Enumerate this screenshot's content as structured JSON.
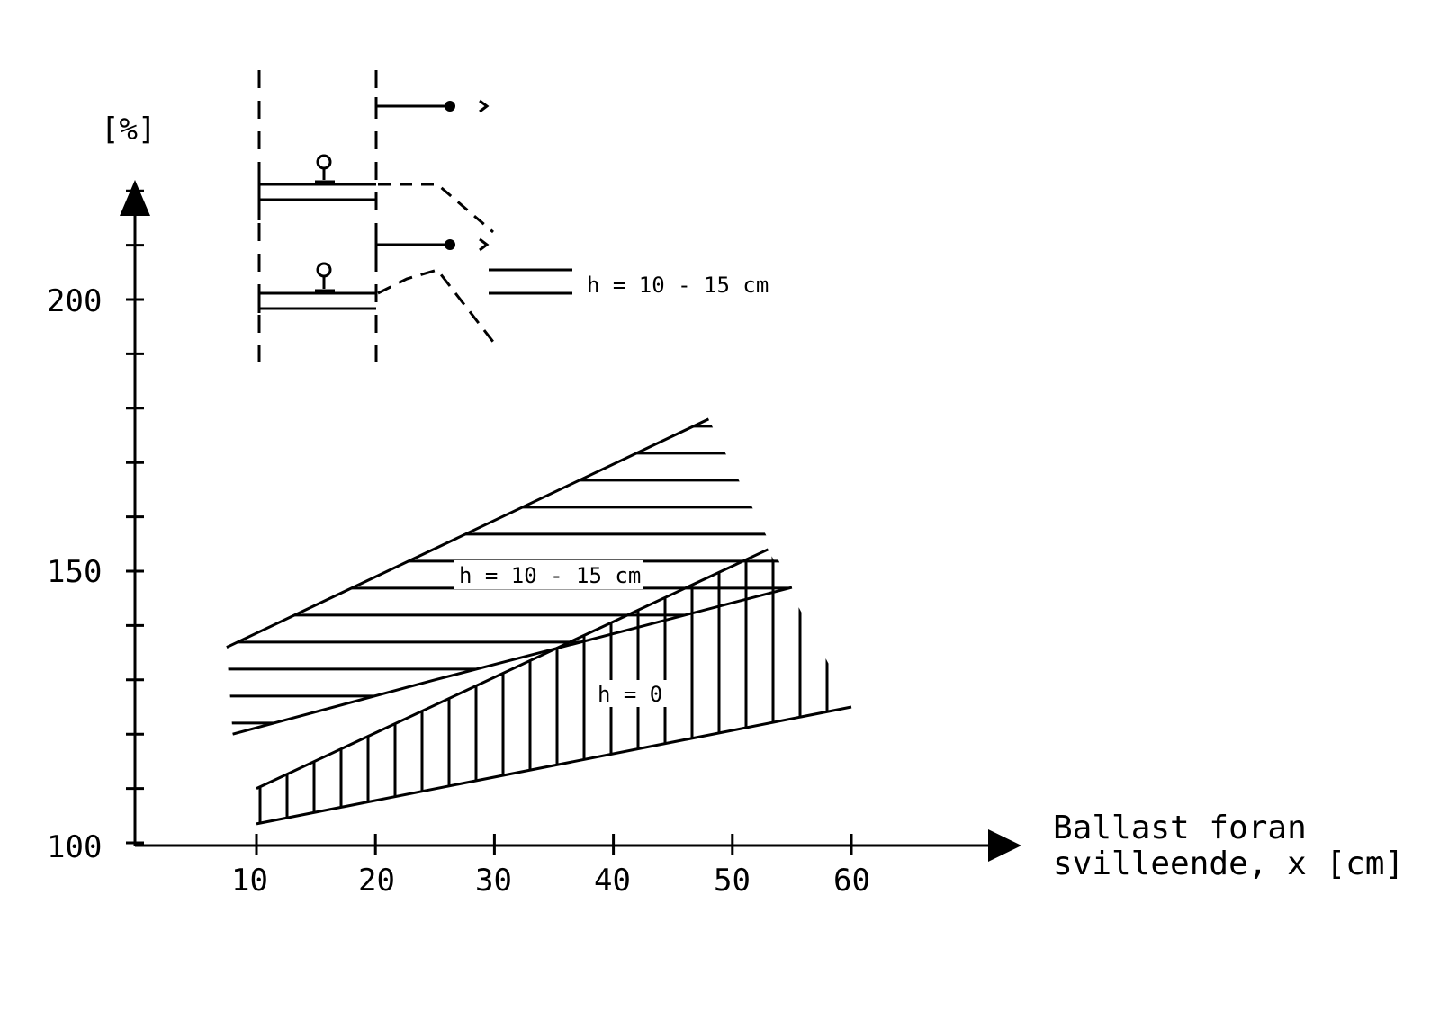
{
  "chart_data": {
    "type": "area",
    "title": "",
    "ylabel": "[%]",
    "xlabel_lines": [
      "Ballast foran",
      "svilleende, x [cm]"
    ],
    "x_ticks": [
      "10",
      "20",
      "30",
      "40",
      "50",
      "60"
    ],
    "y_ticks": [
      "100",
      "150",
      "200"
    ],
    "xlim": [
      0,
      63
    ],
    "ylim": [
      100,
      225
    ],
    "grid": false,
    "legend": "none",
    "inset_label": "h = 10 - 15 cm",
    "series": [
      {
        "label": "h = 10 - 15 cm",
        "hatch": "horizontal",
        "upper": [
          {
            "x": 7.5,
            "y": 136
          },
          {
            "x": 48,
            "y": 178
          }
        ],
        "lower": [
          {
            "x": 8,
            "y": 120
          },
          {
            "x": 25,
            "y": 130
          },
          {
            "x": 55,
            "y": 147
          }
        ]
      },
      {
        "label": "h = 0",
        "hatch": "vertical",
        "upper": [
          {
            "x": 10,
            "y": 110
          },
          {
            "x": 53,
            "y": 154
          }
        ],
        "lower": [
          {
            "x": 10,
            "y": 103.5
          },
          {
            "x": 60,
            "y": 125
          }
        ]
      }
    ]
  }
}
